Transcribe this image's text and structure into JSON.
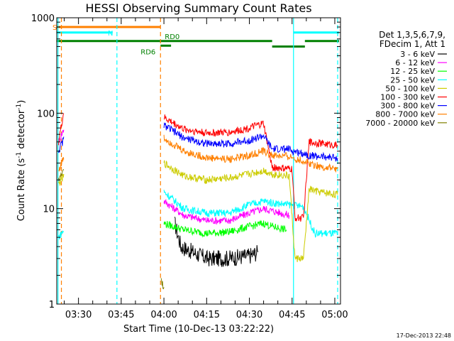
{
  "chart_data": {
    "type": "line",
    "title": "HESSI Observing Summary Count Rates",
    "xlabel": "Start Time (10-Dec-13 03:22:22)",
    "ylabel_main": "Count Rate (s",
    "ylabel_sup1": "-1",
    "ylabel_mid": " detector",
    "ylabel_sup2": "-1",
    "ylabel_end": ")",
    "y_scale": "log",
    "ylim": [
      1,
      1000
    ],
    "y_ticks": [
      {
        "value": 1,
        "label": "1"
      },
      {
        "value": 10,
        "label": "10"
      },
      {
        "value": 100,
        "label": "100"
      },
      {
        "value": 1000,
        "label": "1000"
      }
    ],
    "x_start_min": 202.37,
    "x_end_min": 302.0,
    "x_ticks": [
      {
        "value": 210,
        "label": "03:30"
      },
      {
        "value": 225,
        "label": "03:45"
      },
      {
        "value": 240,
        "label": "04:00"
      },
      {
        "value": 255,
        "label": "04:15"
      },
      {
        "value": 270,
        "label": "04:30"
      },
      {
        "value": 285,
        "label": "04:45"
      },
      {
        "value": 300,
        "label": "05:00"
      }
    ],
    "legend_header": [
      "Det 1,3,5,6,7,9,",
      "FDecim 1, Att 1"
    ],
    "legend_position": "right",
    "series": [
      {
        "name": "3 - 6 keV",
        "color": "#000000",
        "values": [
          [
            243.8,
            7
          ],
          [
            246,
            4
          ],
          [
            255,
            3
          ],
          [
            262,
            3
          ],
          [
            270,
            3.2
          ],
          [
            273,
            3.5
          ]
        ]
      },
      {
        "name": "6 - 12 keV",
        "color": "#ff00ff",
        "values": [
          [
            203,
            50
          ],
          [
            205,
            70
          ],
          [
            240,
            12
          ],
          [
            247,
            8.5
          ],
          [
            255,
            7.5
          ],
          [
            263,
            7.5
          ],
          [
            270,
            9
          ],
          [
            275,
            10
          ],
          [
            278,
            9.5
          ],
          [
            284,
            8.5
          ]
        ]
      },
      {
        "name": "12 - 25 keV",
        "color": "#00ff00",
        "values": [
          [
            240,
            7
          ],
          [
            247,
            6
          ],
          [
            255,
            5.5
          ],
          [
            263,
            5.7
          ],
          [
            270,
            6.5
          ],
          [
            275,
            7
          ],
          [
            278,
            6.5
          ],
          [
            283,
            6
          ]
        ]
      },
      {
        "name": "25 - 50 keV",
        "color": "#00ffff",
        "values": [
          [
            203,
            5
          ],
          [
            205,
            6
          ],
          [
            240,
            15
          ],
          [
            247,
            10
          ],
          [
            255,
            9
          ],
          [
            263,
            9
          ],
          [
            270,
            11
          ],
          [
            275,
            12
          ],
          [
            278,
            11.5
          ],
          [
            284,
            11
          ],
          [
            289,
            10.5
          ],
          [
            293,
            5.5
          ],
          [
            296,
            5.5
          ],
          [
            301,
            5.5
          ]
        ]
      },
      {
        "name": "50 - 100 keV",
        "color": "#cccc00",
        "values": [
          [
            203,
            18
          ],
          [
            205,
            22
          ],
          [
            240,
            30
          ],
          [
            247,
            22
          ],
          [
            255,
            20
          ],
          [
            263,
            21
          ],
          [
            270,
            23
          ],
          [
            275,
            25
          ],
          [
            278,
            23
          ],
          [
            284,
            22
          ],
          [
            286,
            3
          ],
          [
            289,
            3
          ],
          [
            291,
            16
          ],
          [
            294,
            15
          ],
          [
            301,
            14
          ]
        ]
      },
      {
        "name": "100 - 300 keV",
        "color": "#ff0000",
        "values": [
          [
            203,
            50
          ],
          [
            205,
            110
          ],
          [
            240,
            90
          ],
          [
            247,
            68
          ],
          [
            255,
            62
          ],
          [
            263,
            63
          ],
          [
            270,
            70
          ],
          [
            275,
            78
          ],
          [
            278,
            27
          ],
          [
            284,
            26
          ],
          [
            285,
            26
          ],
          [
            286,
            8
          ],
          [
            289,
            8
          ],
          [
            291,
            50
          ],
          [
            296,
            48
          ],
          [
            301,
            46
          ]
        ]
      },
      {
        "name": "300 - 800 keV",
        "color": "#0000ff",
        "values": [
          [
            203,
            40
          ],
          [
            205,
            55
          ],
          [
            240,
            75
          ],
          [
            247,
            55
          ],
          [
            255,
            48
          ],
          [
            263,
            48
          ],
          [
            270,
            52
          ],
          [
            275,
            58
          ],
          [
            278,
            42
          ],
          [
            284,
            42
          ],
          [
            285,
            40
          ],
          [
            289,
            38
          ],
          [
            291,
            36
          ],
          [
            301,
            34
          ]
        ]
      },
      {
        "name": "800 - 7000 keV",
        "color": "#ff8000",
        "values": [
          [
            203,
            25
          ],
          [
            205,
            35
          ],
          [
            240,
            55
          ],
          [
            247,
            40
          ],
          [
            255,
            34
          ],
          [
            263,
            33
          ],
          [
            270,
            36
          ],
          [
            275,
            40
          ],
          [
            278,
            36
          ],
          [
            284,
            35
          ],
          [
            291,
            30
          ],
          [
            296,
            27
          ],
          [
            301,
            26
          ]
        ]
      },
      {
        "name": "7000 - 20000 keV",
        "color": "#808000",
        "values": [
          [
            203,
            20
          ],
          [
            205,
            25
          ],
          [
            239,
            1.8
          ],
          [
            240,
            1.5
          ]
        ]
      }
    ],
    "flag_lines": [
      {
        "label": "S",
        "color": "#ff8000",
        "x": [
          202.37,
          238.8
        ],
        "y": 800
      },
      {
        "label": "N",
        "color": "#00ffff",
        "x": [
          202.37,
          222.0
        ],
        "y": 700
      },
      {
        "label": "",
        "color": "#00ffff",
        "x": [
          285.5,
          301.5
        ],
        "y": 700
      },
      {
        "label": "RD0",
        "color": "#008000",
        "x": [
          238.8,
          278.0
        ],
        "y": 570
      },
      {
        "label": "",
        "color": "#008000",
        "x": [
          202.37,
          238.8
        ],
        "y": 570
      },
      {
        "label": "RD6",
        "color": "#008000",
        "x": [
          238.8,
          242.5
        ],
        "y": 510
      },
      {
        "label": "",
        "color": "#008000",
        "x": [
          278.0,
          289.5
        ],
        "y": 500
      },
      {
        "label": "",
        "color": "#008000",
        "x": [
          289.5,
          301.5
        ],
        "y": 570
      }
    ],
    "vlines": [
      {
        "x": 204.0,
        "color": "#ff8000",
        "dash": true
      },
      {
        "x": 223.5,
        "color": "#00ffff",
        "dash": true
      },
      {
        "x": 238.8,
        "color": "#ff8000",
        "dash": true
      },
      {
        "x": 285.5,
        "color": "#00ffff",
        "dash": false
      },
      {
        "x": 301.0,
        "color": "#00ffff",
        "dash": true
      },
      {
        "x": 202.8,
        "color": "#00ffff",
        "dash": false
      }
    ],
    "timestamp": "17-Dec-2013 22:48"
  }
}
